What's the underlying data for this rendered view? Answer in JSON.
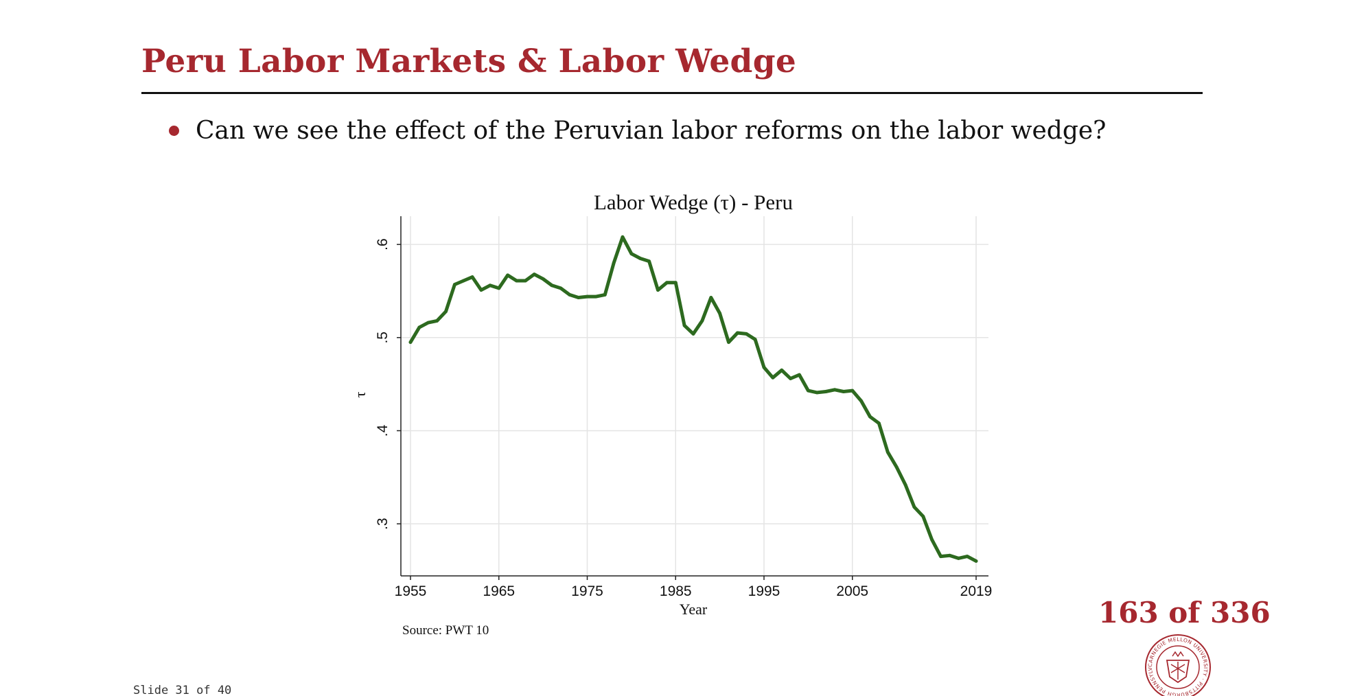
{
  "slide": {
    "title": "Peru Labor Markets & Labor Wedge",
    "bullet": "Can we see the effect of the Peruvian labor reforms on the labor wedge?",
    "counter": "163 of 336",
    "slide_number": "Slide 31 of 40",
    "seal_text": "CARNEGIE MELLON UNIVERSITY · PITTSBURGH PENNSYLVANIA 1900",
    "colors": {
      "accent": "#a6282f",
      "line": "#2d6a1f",
      "grid": "#e4e4e4"
    }
  },
  "chart_data": {
    "type": "line",
    "title": "Labor Wedge (τ) - Peru",
    "xlabel": "Year",
    "ylabel": "τ",
    "source": "Source: PWT 10",
    "xlim": [
      1955,
      2019
    ],
    "ylim": [
      0.25,
      0.62
    ],
    "x_ticks": [
      1955,
      1965,
      1975,
      1985,
      1995,
      2005,
      2019
    ],
    "y_ticks": [
      0.3,
      0.4,
      0.5,
      0.6
    ],
    "y_tick_labels": [
      ".3",
      ".4",
      ".5",
      ".6"
    ],
    "grid": true,
    "series": [
      {
        "x": [
          1955,
          1956,
          1957,
          1958,
          1959,
          1960,
          1961,
          1962,
          1963,
          1964,
          1965,
          1966,
          1967,
          1968,
          1969,
          1970,
          1971,
          1972,
          1973,
          1974,
          1975,
          1976,
          1977,
          1978,
          1979,
          1980,
          1981,
          1982,
          1983,
          1984,
          1985,
          1986,
          1987,
          1988,
          1989,
          1990,
          1991,
          1992,
          1993,
          1994,
          1995,
          1996,
          1997,
          1998,
          1999,
          2000,
          2001,
          2002,
          2003,
          2004,
          2005,
          2006,
          2007,
          2008,
          2009,
          2010,
          2011,
          2012,
          2013,
          2014,
          2015,
          2016,
          2017,
          2018,
          2019
        ],
        "y": [
          0.495,
          0.511,
          0.516,
          0.518,
          0.528,
          0.557,
          0.561,
          0.565,
          0.551,
          0.556,
          0.553,
          0.567,
          0.561,
          0.561,
          0.568,
          0.563,
          0.556,
          0.553,
          0.546,
          0.543,
          0.544,
          0.544,
          0.546,
          0.58,
          0.608,
          0.59,
          0.585,
          0.582,
          0.551,
          0.559,
          0.559,
          0.513,
          0.504,
          0.518,
          0.543,
          0.526,
          0.495,
          0.505,
          0.504,
          0.498,
          0.468,
          0.457,
          0.465,
          0.456,
          0.46,
          0.443,
          0.441,
          0.442,
          0.444,
          0.442,
          0.443,
          0.432,
          0.415,
          0.408,
          0.377,
          0.361,
          0.342,
          0.318,
          0.308,
          0.283,
          0.265,
          0.266,
          0.263,
          0.265,
          0.26
        ]
      }
    ]
  }
}
